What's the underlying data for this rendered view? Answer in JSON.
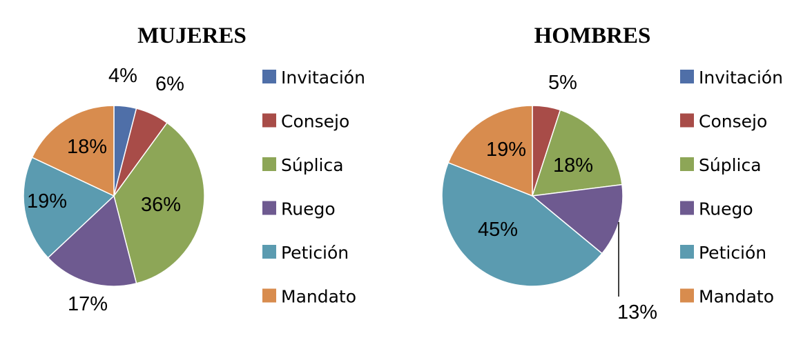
{
  "chart_data": [
    {
      "type": "pie",
      "title": "MUJERES",
      "categories": [
        "Invitación",
        "Consejo",
        "Súplica",
        "Ruego",
        "Petición",
        "Mandato"
      ],
      "values": [
        4,
        6,
        36,
        17,
        19,
        18
      ],
      "labels": [
        "4%",
        "6%",
        "36%",
        "17%",
        "19%",
        "18%"
      ],
      "colors": [
        "#4F6FA8",
        "#A84C48",
        "#8DA657",
        "#6E5A90",
        "#5B9BB0",
        "#D88C4E"
      ],
      "legend": "right"
    },
    {
      "type": "pie",
      "title": "HOMBRES",
      "categories": [
        "Invitación",
        "Consejo",
        "Súplica",
        "Ruego",
        "Petición",
        "Mandato"
      ],
      "values": [
        0,
        5,
        18,
        13,
        45,
        19
      ],
      "labels": [
        "",
        "5%",
        "18%",
        "13%",
        "45%",
        "19%"
      ],
      "colors": [
        "#4F6FA8",
        "#A84C48",
        "#8DA657",
        "#6E5A90",
        "#5B9BB0",
        "#D88C4E"
      ],
      "legend": "right"
    }
  ]
}
